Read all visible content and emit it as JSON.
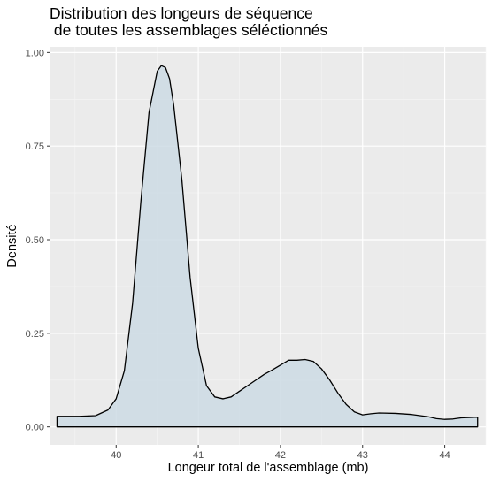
{
  "chart_data": {
    "type": "area",
    "title_lines": [
      "Distribution des longeurs de séquence",
      " de toutes les assemblages séléctionnés"
    ],
    "xlabel": "Longeur total de l'assemblage (mb)",
    "ylabel": "Densité",
    "xlim": [
      39.2,
      44.5
    ],
    "ylim": [
      -0.048,
      1.015
    ],
    "x_ticks": [
      40,
      41,
      42,
      43,
      44
    ],
    "y_ticks": [
      0.0,
      0.25,
      0.5,
      0.75,
      1.0
    ],
    "y_tick_labels": [
      "0.00",
      "0.25",
      "0.50",
      "0.75",
      "1.00"
    ],
    "grid": true,
    "fill_color": "#ccdae4",
    "line_color": "#000000",
    "panel_color": "#ebebeb",
    "series": [
      {
        "x": [
          39.28,
          39.28,
          39.55,
          39.75,
          39.9,
          40.0,
          40.1,
          40.2,
          40.3,
          40.4,
          40.5,
          40.55,
          40.6,
          40.65,
          40.7,
          40.8,
          40.9,
          41.0,
          41.1,
          41.2,
          41.3,
          41.4,
          41.5,
          41.6,
          41.7,
          41.8,
          41.9,
          42.0,
          42.1,
          42.2,
          42.3,
          42.4,
          42.5,
          42.6,
          42.7,
          42.8,
          42.9,
          43.0,
          43.1,
          43.2,
          43.4,
          43.6,
          43.8,
          43.9,
          44.0,
          44.1,
          44.2,
          44.4,
          44.4
        ],
        "y": [
          0.0,
          0.028,
          0.028,
          0.03,
          0.045,
          0.075,
          0.15,
          0.33,
          0.6,
          0.84,
          0.95,
          0.965,
          0.96,
          0.93,
          0.86,
          0.66,
          0.4,
          0.21,
          0.11,
          0.08,
          0.075,
          0.08,
          0.095,
          0.11,
          0.125,
          0.14,
          0.152,
          0.165,
          0.178,
          0.178,
          0.18,
          0.175,
          0.155,
          0.125,
          0.09,
          0.06,
          0.04,
          0.032,
          0.035,
          0.037,
          0.036,
          0.033,
          0.027,
          0.022,
          0.02,
          0.021,
          0.024,
          0.026,
          0.0
        ]
      }
    ]
  }
}
